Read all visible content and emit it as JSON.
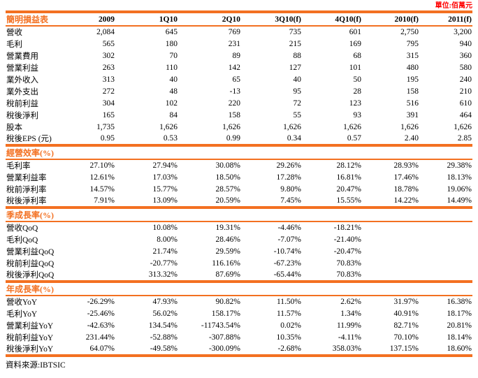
{
  "unit_label": "單位:佰萬元",
  "source_note": "資料來源:IBTSIC",
  "colors": {
    "accent_orange": "#F37021",
    "unit_red": "#FF0000"
  },
  "table": {
    "columns": [
      "簡明損益表",
      "2009",
      "1Q10",
      "2Q10",
      "3Q10(f)",
      "4Q10(f)",
      "2010(f)",
      "2011(f)"
    ],
    "sections": [
      {
        "title": null,
        "rows": [
          {
            "label": "營收",
            "values": [
              "2,084",
              "645",
              "769",
              "735",
              "601",
              "2,750",
              "3,200"
            ]
          },
          {
            "label": "毛利",
            "values": [
              "565",
              "180",
              "231",
              "215",
              "169",
              "795",
              "940"
            ]
          },
          {
            "label": "營業費用",
            "values": [
              "302",
              "70",
              "89",
              "88",
              "68",
              "315",
              "360"
            ]
          },
          {
            "label": "營業利益",
            "values": [
              "263",
              "110",
              "142",
              "127",
              "101",
              "480",
              "580"
            ]
          },
          {
            "label": "業外收入",
            "values": [
              "313",
              "40",
              "65",
              "40",
              "50",
              "195",
              "240"
            ]
          },
          {
            "label": "業外支出",
            "values": [
              "272",
              "48",
              "-13",
              "95",
              "28",
              "158",
              "210"
            ]
          },
          {
            "label": "稅前利益",
            "values": [
              "304",
              "102",
              "220",
              "72",
              "123",
              "516",
              "610"
            ]
          },
          {
            "label": "稅後淨利",
            "values": [
              "165",
              "84",
              "158",
              "55",
              "93",
              "391",
              "464"
            ]
          },
          {
            "label": "股本",
            "values": [
              "1,735",
              "1,626",
              "1,626",
              "1,626",
              "1,626",
              "1,626",
              "1,626"
            ]
          },
          {
            "label": "稅後EPS (元)",
            "values": [
              "0.95",
              "0.53",
              "0.99",
              "0.34",
              "0.57",
              "2.40",
              "2.85"
            ]
          }
        ]
      },
      {
        "title": "經營效率(%)",
        "rows": [
          {
            "label": "毛利率",
            "values": [
              "27.10%",
              "27.94%",
              "30.08%",
              "29.26%",
              "28.12%",
              "28.93%",
              "29.38%"
            ]
          },
          {
            "label": "營業利益率",
            "values": [
              "12.61%",
              "17.03%",
              "18.50%",
              "17.28%",
              "16.81%",
              "17.46%",
              "18.13%"
            ]
          },
          {
            "label": "稅前淨利率",
            "values": [
              "14.57%",
              "15.77%",
              "28.57%",
              "9.80%",
              "20.47%",
              "18.78%",
              "19.06%"
            ]
          },
          {
            "label": "稅後淨利率",
            "values": [
              "7.91%",
              "13.09%",
              "20.59%",
              "7.45%",
              "15.55%",
              "14.22%",
              "14.49%"
            ]
          }
        ]
      },
      {
        "title": "季成長率(%)",
        "rows": [
          {
            "label": "營收QoQ",
            "values": [
              "",
              "10.08%",
              "19.31%",
              "-4.46%",
              "-18.21%",
              "",
              ""
            ]
          },
          {
            "label": "毛利QoQ",
            "values": [
              "",
              "8.00%",
              "28.46%",
              "-7.07%",
              "-21.40%",
              "",
              ""
            ]
          },
          {
            "label": "營業利益QoQ",
            "values": [
              "",
              "21.74%",
              "29.59%",
              "-10.74%",
              "-20.47%",
              "",
              ""
            ]
          },
          {
            "label": "稅前利益QoQ",
            "values": [
              "",
              "-20.77%",
              "116.16%",
              "-67.23%",
              "70.83%",
              "",
              ""
            ]
          },
          {
            "label": "稅後淨利QoQ",
            "values": [
              "",
              "313.32%",
              "87.69%",
              "-65.44%",
              "70.83%",
              "",
              ""
            ]
          }
        ]
      },
      {
        "title": "年成長率(%)",
        "rows": [
          {
            "label": "營收YoY",
            "values": [
              "-26.29%",
              "47.93%",
              "90.82%",
              "11.50%",
              "2.62%",
              "31.97%",
              "16.38%"
            ]
          },
          {
            "label": "毛利YoY",
            "values": [
              "-25.46%",
              "56.02%",
              "158.17%",
              "11.57%",
              "1.34%",
              "40.91%",
              "18.17%"
            ]
          },
          {
            "label": "營業利益YoY",
            "values": [
              "-42.63%",
              "134.54%",
              "-11743.54%",
              "0.02%",
              "11.99%",
              "82.71%",
              "20.81%"
            ]
          },
          {
            "label": "稅前利益YoY",
            "values": [
              "231.44%",
              "-52.88%",
              "-307.88%",
              "10.35%",
              "-4.11%",
              "70.10%",
              "18.14%"
            ]
          },
          {
            "label": "稅後淨利YoY",
            "values": [
              "64.07%",
              "-49.58%",
              "-300.09%",
              "-2.68%",
              "358.03%",
              "137.15%",
              "18.60%"
            ]
          }
        ]
      }
    ]
  }
}
